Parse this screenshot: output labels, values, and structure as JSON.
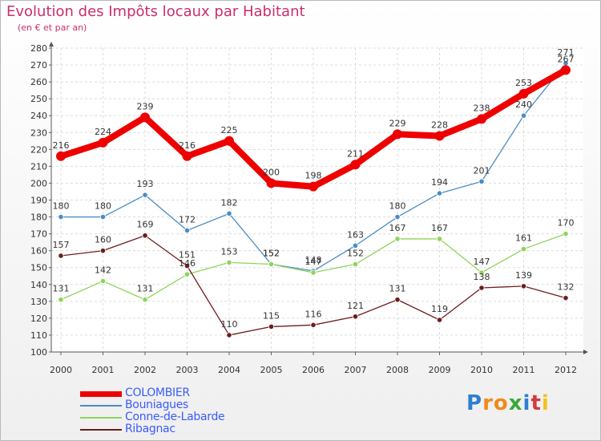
{
  "title": "Evolution des Impôts locaux par Habitant",
  "subtitle": "(en € et par an)",
  "logo_letters": [
    "P",
    "r",
    "o",
    "x",
    "i",
    "t",
    "i"
  ],
  "logo_colors": [
    "#2e7fd0",
    "#f08a1c",
    "#f08a1c",
    "#3aa83a",
    "#2e7fd0",
    "#d23b3b",
    "#f0c21c"
  ],
  "chart_data": {
    "type": "line",
    "title": "Evolution des Impôts locaux par Habitant",
    "xlabel": "",
    "ylabel": "",
    "x": [
      2000,
      2001,
      2002,
      2003,
      2004,
      2005,
      2006,
      2007,
      2008,
      2009,
      2010,
      2011,
      2012
    ],
    "ylim": [
      100,
      280
    ],
    "yticks": [
      100,
      110,
      120,
      130,
      140,
      150,
      160,
      170,
      180,
      190,
      200,
      210,
      220,
      230,
      240,
      250,
      260,
      270,
      280
    ],
    "legend_position": "bottom-left",
    "grid": true,
    "series": [
      {
        "name": "COLOMBIER",
        "color": "#ee0000",
        "values": [
          216,
          224,
          239,
          216,
          225,
          200,
          198,
          211,
          229,
          228,
          238,
          253,
          267
        ]
      },
      {
        "name": "Bouniagues",
        "color": "#4a8cc4",
        "values": [
          180,
          180,
          193,
          172,
          182,
          152,
          148,
          163,
          180,
          194,
          201,
          240,
          271
        ]
      },
      {
        "name": "Conne-de-Labarde",
        "color": "#8fd45a",
        "values": [
          131,
          142,
          131,
          146,
          153,
          152,
          147,
          152,
          167,
          167,
          147,
          161,
          170
        ]
      },
      {
        "name": "Ribagnac",
        "color": "#6e1c1c",
        "values": [
          157,
          160,
          169,
          151,
          110,
          115,
          116,
          121,
          131,
          119,
          138,
          139,
          132
        ]
      }
    ]
  }
}
